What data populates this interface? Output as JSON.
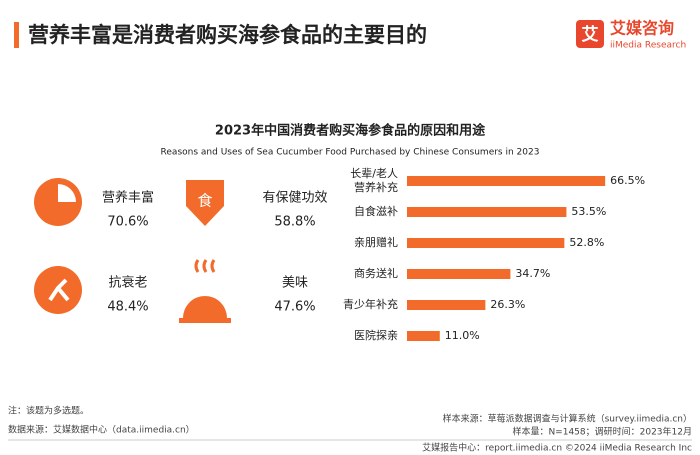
{
  "header": {
    "title": "营养丰富是消费者购买海参食品的主要目的",
    "logo": "艾媒咨询",
    "logo_sub": "iiMedia Research"
  },
  "highlights": [
    {
      "label": "营养丰富",
      "value": "70.6%"
    },
    {
      "label": "有保健功效",
      "value": "58.8%"
    },
    {
      "label": "抗衰老",
      "value": "48.4%"
    },
    {
      "label": "美味",
      "value": "47.6%"
    }
  ],
  "chart_data": {
    "type": "bar",
    "orientation": "horizontal",
    "title": "2023年中国消费者购买海参食品的原因和用途",
    "subtitle": "Reasons and Uses of Sea Cucumber Food Purchased by Chinese Consumers in 2023",
    "categories": [
      "长辈/老人\n营养补充",
      "自食滋补",
      "亲朋赠礼",
      "商务送礼",
      "青少年补充",
      "医院探亲"
    ],
    "values": [
      66.5,
      53.5,
      52.8,
      34.7,
      26.3,
      11.0
    ],
    "value_labels": [
      "66.5%",
      "53.5%",
      "52.8%",
      "34.7%",
      "26.3%",
      "11.0%"
    ],
    "color": "#f26b2a"
  },
  "footer": {
    "note": "注：该题为多选题。",
    "source": "数据来源：艾媒数据中心（data.iimedia.cn）",
    "sample_source": "样本来源：草莓派数据调查与计算系统（survey.iimedia.cn）",
    "sample": "样本量：N=1458；调研时间：2023年12月",
    "credit": "艾媒报告中心：report.iimedia.cn   ©2024  iiMedia Research  Inc"
  }
}
